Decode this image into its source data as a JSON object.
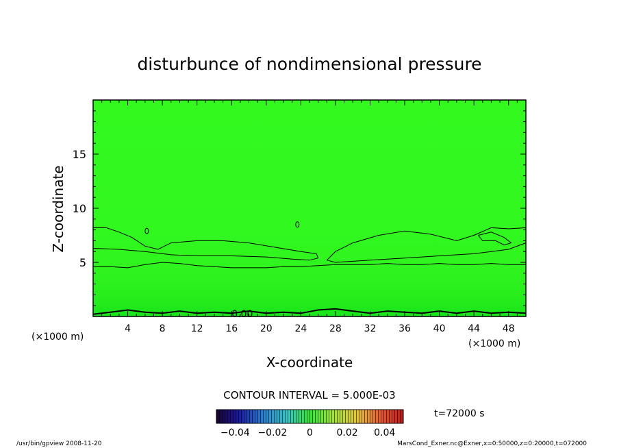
{
  "chart_data": {
    "type": "heatmap",
    "title": "disturbunce of nondimensional pressure",
    "xlabel": "X-coordinate",
    "ylabel": "Z-coordinate",
    "x_unit_left": "(×1000 m)",
    "x_unit_right": "(×1000 m)",
    "xlim": [
      0,
      50
    ],
    "ylim": [
      0,
      20
    ],
    "x_ticks": [
      4,
      8,
      12,
      16,
      20,
      24,
      28,
      32,
      36,
      40,
      44,
      48
    ],
    "x_tick_labels": [
      "4",
      "8",
      "12",
      "16",
      "20",
      "24",
      "28",
      "32",
      "36",
      "40",
      "44",
      "48"
    ],
    "y_ticks": [
      5,
      10,
      15
    ],
    "y_tick_labels": [
      "5",
      "10",
      "15"
    ],
    "contour_label": "0.00",
    "contour_interval_text": "CONTOUR INTERVAL = 5.000E-03",
    "time_text": "t=72000 s",
    "colorbar": {
      "range": [
        -0.05,
        0.05
      ],
      "ticks": [
        -0.04,
        -0.02,
        0,
        0.02,
        0.04
      ],
      "tick_labels": [
        "−0.04",
        "−0.02",
        "0",
        "0.02",
        "0.04"
      ]
    },
    "contours": [
      {
        "name": "level-0.00",
        "points": [
          [
            0,
            0.2
          ],
          [
            2,
            0.4
          ],
          [
            4,
            0.6
          ],
          [
            6,
            0.4
          ],
          [
            8,
            0.3
          ],
          [
            10,
            0.5
          ],
          [
            12,
            0.3
          ],
          [
            14,
            0.4
          ],
          [
            16,
            0.3
          ],
          [
            18,
            0.5
          ],
          [
            20,
            0.3
          ],
          [
            22,
            0.4
          ],
          [
            24,
            0.3
          ],
          [
            26,
            0.6
          ],
          [
            28,
            0.7
          ],
          [
            30,
            0.5
          ],
          [
            32,
            0.3
          ],
          [
            34,
            0.5
          ],
          [
            36,
            0.4
          ],
          [
            38,
            0.3
          ],
          [
            40,
            0.5
          ],
          [
            42,
            0.3
          ],
          [
            44,
            0.5
          ],
          [
            46,
            0.3
          ],
          [
            48,
            0.4
          ],
          [
            50,
            0.3
          ]
        ]
      },
      {
        "name": "level-lower",
        "points": [
          [
            0,
            4.6
          ],
          [
            2,
            4.6
          ],
          [
            4,
            4.5
          ],
          [
            6,
            4.8
          ],
          [
            8,
            5.0
          ],
          [
            10,
            4.9
          ],
          [
            12,
            4.7
          ],
          [
            14,
            4.6
          ],
          [
            16,
            4.5
          ],
          [
            18,
            4.5
          ],
          [
            20,
            4.5
          ],
          [
            22,
            4.6
          ],
          [
            24,
            4.6
          ],
          [
            26,
            4.7
          ],
          [
            28,
            4.8
          ],
          [
            30,
            4.8
          ],
          [
            32,
            4.8
          ],
          [
            34,
            4.9
          ],
          [
            36,
            4.8
          ],
          [
            38,
            4.8
          ],
          [
            40,
            4.9
          ],
          [
            42,
            4.8
          ],
          [
            44,
            4.8
          ],
          [
            46,
            4.9
          ],
          [
            48,
            4.8
          ],
          [
            50,
            4.8
          ]
        ]
      },
      {
        "name": "level-upper-left",
        "points": [
          [
            0,
            8.2
          ],
          [
            1.5,
            8.2
          ],
          [
            3,
            7.8
          ],
          [
            4.5,
            7.3
          ],
          [
            6,
            6.5
          ],
          [
            7.5,
            6.2
          ],
          [
            9,
            6.8
          ],
          [
            12,
            7.0
          ],
          [
            15,
            7.0
          ],
          [
            18,
            6.8
          ],
          [
            21,
            6.4
          ],
          [
            24,
            6.0
          ],
          [
            25.8,
            5.8
          ],
          [
            26,
            5.4
          ],
          [
            25,
            5.2
          ],
          [
            23,
            5.3
          ],
          [
            20,
            5.5
          ],
          [
            16,
            5.6
          ],
          [
            12,
            5.6
          ],
          [
            9,
            5.7
          ],
          [
            6,
            6.0
          ],
          [
            3,
            6.2
          ],
          [
            0,
            6.3
          ]
        ]
      },
      {
        "name": "level-upper-right",
        "points": [
          [
            27,
            5.2
          ],
          [
            28,
            6.0
          ],
          [
            30,
            6.8
          ],
          [
            33,
            7.5
          ],
          [
            36,
            7.9
          ],
          [
            39,
            7.6
          ],
          [
            42,
            7.0
          ],
          [
            44,
            7.5
          ],
          [
            46,
            8.2
          ],
          [
            48,
            8.1
          ],
          [
            50,
            8.2
          ],
          [
            50,
            6.8
          ],
          [
            48,
            6.2
          ],
          [
            46,
            6.0
          ],
          [
            44,
            5.8
          ],
          [
            40,
            5.6
          ],
          [
            36,
            5.4
          ],
          [
            32,
            5.2
          ],
          [
            28,
            5.0
          ],
          [
            27,
            5.2
          ]
        ]
      },
      {
        "name": "level-right-inner",
        "points": [
          [
            44.5,
            7.5
          ],
          [
            46,
            7.8
          ],
          [
            47.5,
            7.3
          ],
          [
            48.3,
            6.8
          ],
          [
            47.5,
            6.6
          ],
          [
            46.5,
            7.0
          ],
          [
            45,
            7.0
          ],
          [
            44.5,
            7.5
          ]
        ]
      }
    ],
    "blobs": [
      {
        "name": "blob-left",
        "x": 6.2,
        "y": 7.9
      },
      {
        "name": "blob-mid",
        "x": 23.6,
        "y": 8.5
      }
    ]
  },
  "footer": {
    "left": "/usr/bin/gpview   2008-11-20",
    "right": "MarsCond_Exner.nc@Exner,x=0:50000,z=0:20000,t=072000"
  }
}
